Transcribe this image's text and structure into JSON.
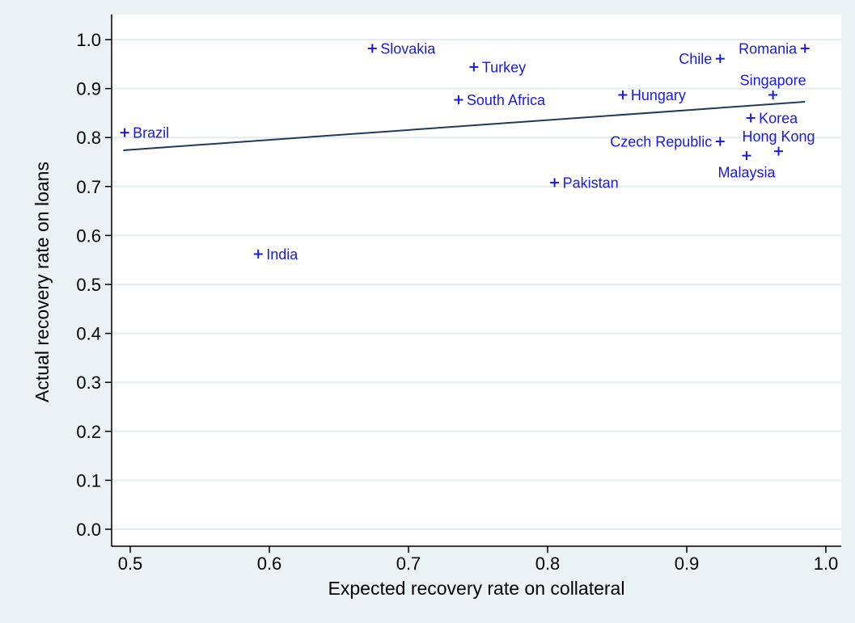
{
  "chart_data": {
    "type": "scatter",
    "title": "",
    "xlabel": "Expected recovery rate on collateral",
    "ylabel": "Actual recovery rate on loans",
    "xlim": [
      0.5,
      1.0
    ],
    "ylim": [
      0.0,
      1.0
    ],
    "x_ticks": [
      0.5,
      0.6,
      0.7,
      0.8,
      0.9,
      1.0
    ],
    "x_tick_labels": [
      "0.5",
      "0.6",
      "0.7",
      "0.8",
      "0.9",
      "1.0"
    ],
    "y_ticks": [
      0.0,
      0.1,
      0.2,
      0.3,
      0.4,
      0.5,
      0.6,
      0.7,
      0.8,
      0.9,
      1.0
    ],
    "y_tick_labels": [
      "0.0",
      "0.1",
      "0.2",
      "0.3",
      "0.4",
      "0.5",
      "0.6",
      "0.7",
      "0.8",
      "0.9",
      "1.0"
    ],
    "grid": "horizontal",
    "marker": "+",
    "colors": {
      "points": "#1a1adb",
      "fit_line": "#1f3b5a",
      "plot_background": "#ffffff",
      "outer_background": "#eaf2f3",
      "grid": "#e3ecee"
    },
    "points": [
      {
        "label": "Brazil",
        "x": 0.496,
        "y": 0.81,
        "label_side": "right"
      },
      {
        "label": "India",
        "x": 0.592,
        "y": 0.562,
        "label_side": "right"
      },
      {
        "label": "Slovakia",
        "x": 0.674,
        "y": 0.982,
        "label_side": "right"
      },
      {
        "label": "Turkey",
        "x": 0.747,
        "y": 0.944,
        "label_side": "right"
      },
      {
        "label": "South Africa",
        "x": 0.736,
        "y": 0.877,
        "label_side": "right"
      },
      {
        "label": "Pakistan",
        "x": 0.805,
        "y": 0.708,
        "label_side": "right"
      },
      {
        "label": "Hungary",
        "x": 0.854,
        "y": 0.887,
        "label_side": "right"
      },
      {
        "label": "Chile",
        "x": 0.924,
        "y": 0.961,
        "label_side": "left"
      },
      {
        "label": "Romania",
        "x": 0.985,
        "y": 0.982,
        "label_side": "left"
      },
      {
        "label": "Singapore",
        "x": 0.962,
        "y": 0.887,
        "label_side": "above"
      },
      {
        "label": "Korea",
        "x": 0.946,
        "y": 0.84,
        "label_side": "right"
      },
      {
        "label": "Czech Republic",
        "x": 0.924,
        "y": 0.792,
        "label_side": "left"
      },
      {
        "label": "Hong Kong",
        "x": 0.966,
        "y": 0.772,
        "label_side": "above"
      },
      {
        "label": "Malaysia",
        "x": 0.943,
        "y": 0.763,
        "label_side": "below"
      }
    ],
    "fit_line": {
      "x": [
        0.495,
        0.985
      ],
      "y": [
        0.774,
        0.873
      ]
    }
  }
}
